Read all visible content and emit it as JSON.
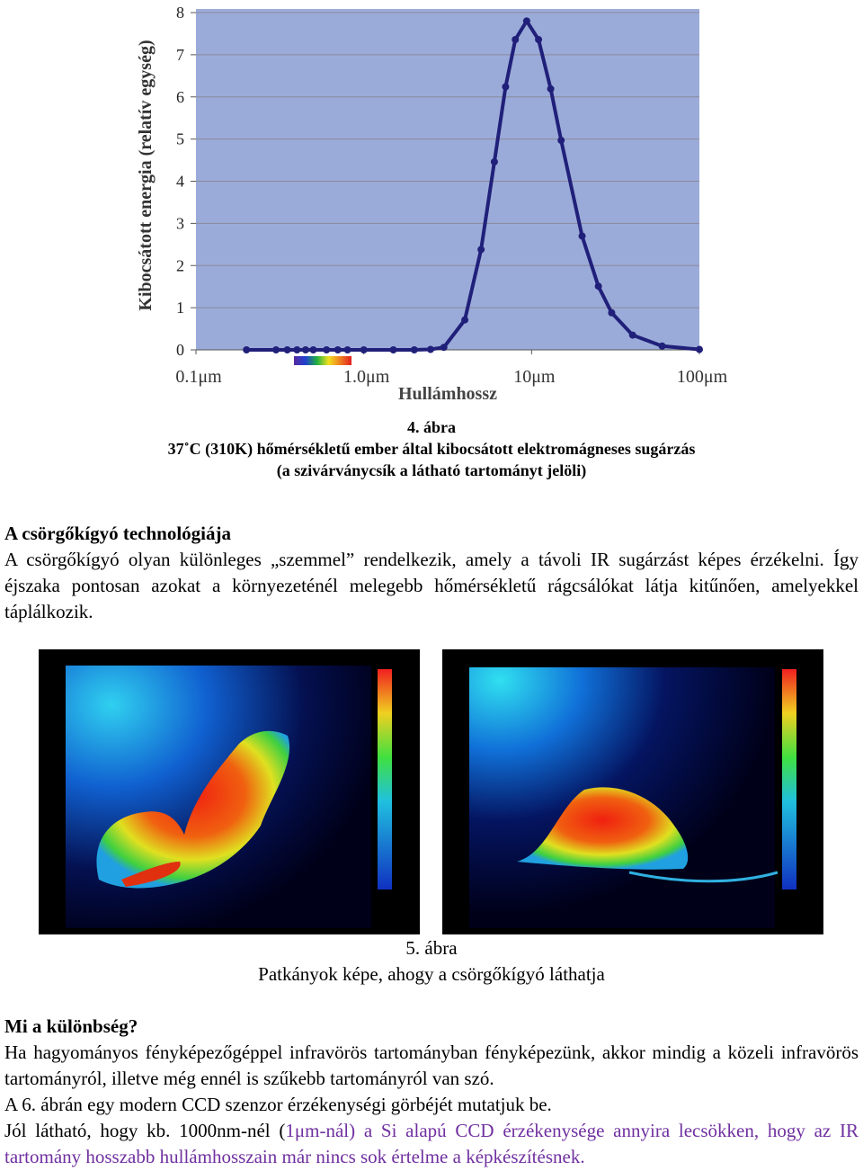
{
  "chart_data": {
    "type": "line",
    "xscale": "log",
    "ylabel": "Kibocsátott energia (relatív egység)",
    "xlabel": "Hullámhossz",
    "x": [
      0.2,
      0.3,
      0.35,
      0.4,
      0.45,
      0.5,
      0.6,
      0.7,
      0.8,
      1,
      1.5,
      2,
      2.5,
      3,
      4,
      5,
      6,
      7,
      8,
      9.35,
      11,
      13,
      15,
      20,
      25,
      30,
      40,
      60,
      100
    ],
    "series": [
      {
        "name": "Kibocsátott energia",
        "color": "#20207a",
        "values": [
          0,
          0,
          0,
          0,
          0,
          0,
          0,
          0,
          0,
          0,
          0,
          0,
          0.01,
          0.06,
          0.71,
          2.38,
          4.46,
          6.24,
          7.36,
          7.8,
          7.36,
          6.19,
          4.97,
          2.7,
          1.51,
          0.88,
          0.35,
          0.09,
          0.01
        ]
      }
    ],
    "xlim": [
      0.1,
      100
    ],
    "xticks": [
      {
        "value": 0.1,
        "label": "0.1μm"
      },
      {
        "value": 1,
        "label": "1.0μm"
      },
      {
        "value": 10,
        "label": "10μm"
      },
      {
        "value": 100,
        "label": "100μm"
      }
    ],
    "ylim": [
      0,
      8
    ],
    "yticks": [
      0,
      1,
      2,
      3,
      4,
      5,
      6,
      7,
      8
    ],
    "grid": true
  },
  "document": {
    "fig4_caption": [
      "4. ábra",
      "37˚C (310K) hőmérsékletű ember által kibocsátott elektromágneses sugárzás",
      "(a szivárványcsík a látható tartományt jelöli)"
    ],
    "section1": {
      "heading": "A csörgőkígyó technológiája",
      "text": "A csörgőkígyó olyan különleges „szemmel” rendelkezik, amely a távoli IR sugárzást képes érzékelni. Így éjszaka pontosan azokat a környezeténél melegebb hőmérsékletű rágcsálókat látja kitűnően, amelyekkel táplálkozik."
    },
    "fig5_caption": [
      "5. ábra",
      "Patkányok képe, ahogy a csörgőkígyó láthatja"
    ],
    "section2": {
      "heading": "Mi a különbség?",
      "p1": "Ha hagyományos fényképezőgéppel infravörös tartományban fényképezünk, akkor mindig a közeli infravörös tartományról, illetve még ennél is szűkebb tartományról van szó.",
      "p2": "A 6. ábrán egy modern CCD szenzor érzékenységi görbéjét mutatjuk be.",
      "p3_black": "Jól látható, hogy kb. 1000nm-nél (",
      "p3_purple": "1μm-nál) a Si alapú CCD érzékenysége annyira lecsökken, hogy az IR tartomány hosszabb hullámhosszain már nincs sok értelme a képkészítésnek."
    }
  }
}
